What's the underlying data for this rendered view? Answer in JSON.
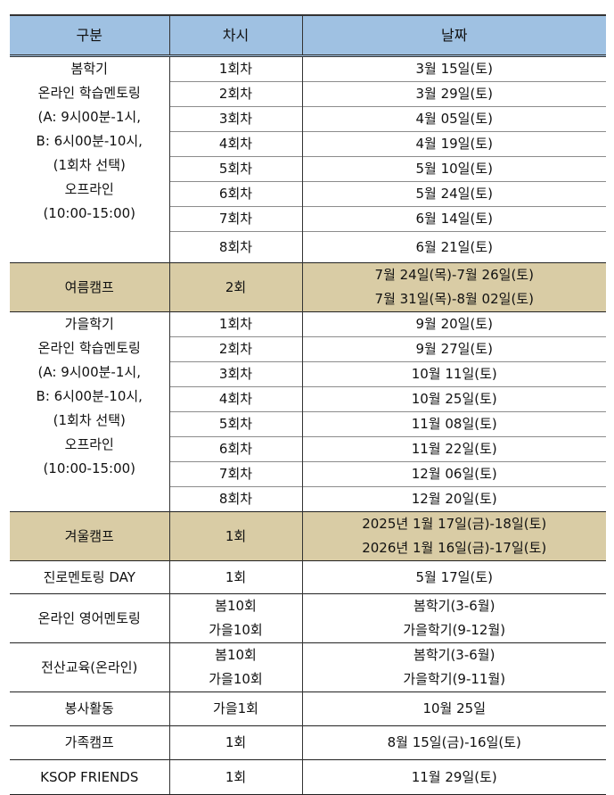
{
  "header": {
    "category": "구분",
    "session": "차시",
    "date": "날짜"
  },
  "spring": {
    "label": [
      "봄학기",
      "온라인 학습멘토링",
      "(A: 9시00분-1시,",
      "B: 6시00분-10시,",
      "(1회차 선택)",
      "오프라인",
      "(10:00-15:00)"
    ],
    "rows": [
      [
        "1회차",
        "3월 15일(토)"
      ],
      [
        "2회차",
        "3월 29일(토)"
      ],
      [
        "3회차",
        "4월 05일(토)"
      ],
      [
        "4회차",
        "4월 19일(토)"
      ],
      [
        "5회차",
        "5월 10일(토)"
      ],
      [
        "6회차",
        "5월 24일(토)"
      ],
      [
        "7회차",
        "6월 14일(토)"
      ],
      [
        "8회차",
        "6월 21일(토)"
      ]
    ]
  },
  "summer_camp": {
    "label": "여름캠프",
    "session": "2회",
    "dates": [
      "7월 24일(목)-7월 26일(토)",
      "7월 31일(목)-8월 02일(토)"
    ]
  },
  "autumn": {
    "label": [
      "가을학기",
      "온라인 학습멘토링",
      "(A: 9시00분-1시,",
      "B: 6시00분-10시,",
      "(1회차 선택)",
      "오프라인",
      "(10:00-15:00)"
    ],
    "rows": [
      [
        "1회차",
        "9월 20일(토)"
      ],
      [
        "2회차",
        "9월 27일(토)"
      ],
      [
        "3회차",
        "10월 11일(토)"
      ],
      [
        "4회차",
        "10월 25일(토)"
      ],
      [
        "5회차",
        "11월 08일(토)"
      ],
      [
        "6회차",
        "11월 22일(토)"
      ],
      [
        "7회차",
        "12월 06일(토)"
      ],
      [
        "8회차",
        "12월 20일(토)"
      ]
    ]
  },
  "winter_camp": {
    "label": "겨울캠프",
    "session": "1회",
    "dates": [
      "2025년 1월 17일(금)-18일(토)",
      "2026년 1월 16일(금)-17일(토)"
    ]
  },
  "others": [
    {
      "label": "진로멘토링 DAY",
      "session": [
        "1회"
      ],
      "dates": [
        "5월 17일(토)"
      ]
    },
    {
      "label": "온라인 영어멘토링",
      "session": [
        "봄10회",
        "가을10회"
      ],
      "dates": [
        "봄학기(3-6월)",
        "가을학기(9-12월)"
      ]
    },
    {
      "label": "전산교육(온라인)",
      "session": [
        "봄10회",
        "가을10회"
      ],
      "dates": [
        "봄학기(3-6월)",
        "가을학기(9-11월)"
      ]
    },
    {
      "label": "봉사활동",
      "session": [
        "가을1회"
      ],
      "dates": [
        "10월 25일"
      ]
    },
    {
      "label": "가족캠프",
      "session": [
        "1회"
      ],
      "dates": [
        "8월 15일(금)-16일(토)"
      ]
    },
    {
      "label": "KSOP FRIENDS",
      "session": [
        "1회"
      ],
      "dates": [
        "11월 29일(토)"
      ]
    }
  ],
  "colors": {
    "header_bg": "#9fc1e2",
    "camp_bg": "#d9cca5"
  }
}
